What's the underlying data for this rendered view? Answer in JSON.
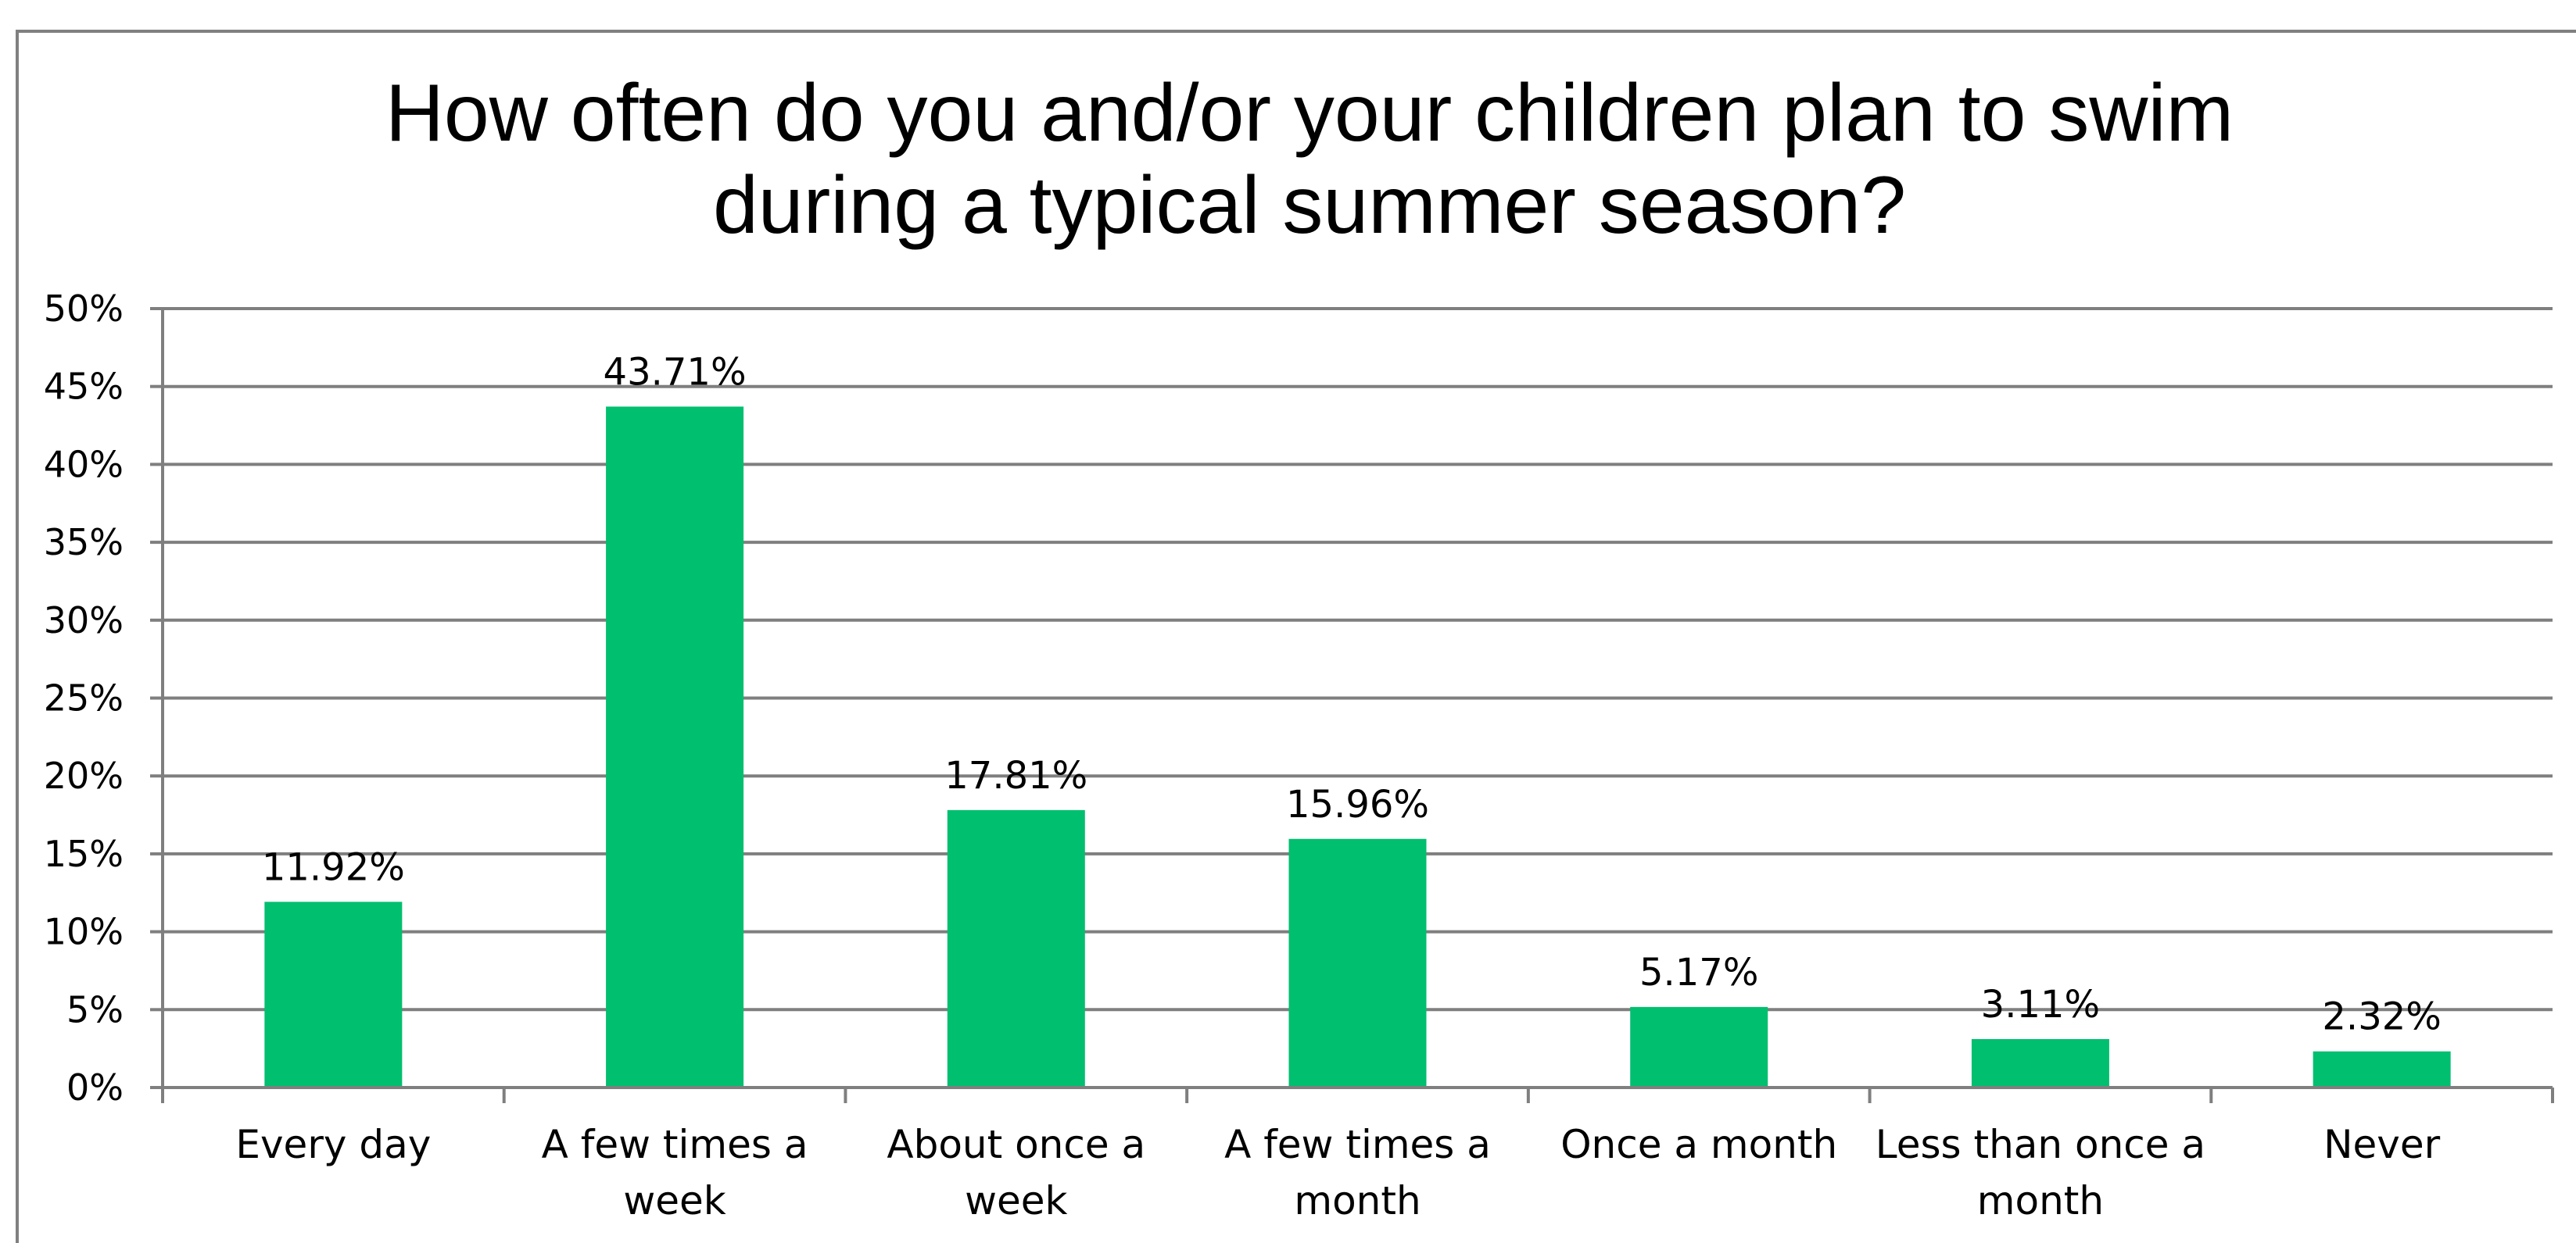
{
  "chart_data": {
    "type": "bar",
    "title_lines": [
      "How often do you and/or your children plan to swim",
      "during a typical summer season?"
    ],
    "categories": [
      [
        "Every day"
      ],
      [
        "A few times a",
        "week"
      ],
      [
        "About once a",
        "week"
      ],
      [
        "A few times a",
        "month"
      ],
      [
        "Once a month"
      ],
      [
        "Less than once a",
        "month"
      ],
      [
        "Never"
      ]
    ],
    "values": [
      11.92,
      43.71,
      17.81,
      15.96,
      5.17,
      3.11,
      2.32
    ],
    "data_labels": [
      "11.92%",
      "43.71%",
      "17.81%",
      "15.96%",
      "5.17%",
      "3.11%",
      "2.32%"
    ],
    "ylim": [
      0,
      50
    ],
    "yticks": [
      0,
      5,
      10,
      15,
      20,
      25,
      30,
      35,
      40,
      45,
      50
    ],
    "ytick_labels": [
      "0%",
      "5%",
      "10%",
      "15%",
      "20%",
      "25%",
      "30%",
      "35%",
      "40%",
      "45%",
      "50%"
    ],
    "grid": true,
    "legend": "none",
    "colors": {
      "bar": "#00BF6F",
      "grid": "#7f7f7f",
      "axis": "#7f7f7f",
      "border": "#808080"
    }
  }
}
